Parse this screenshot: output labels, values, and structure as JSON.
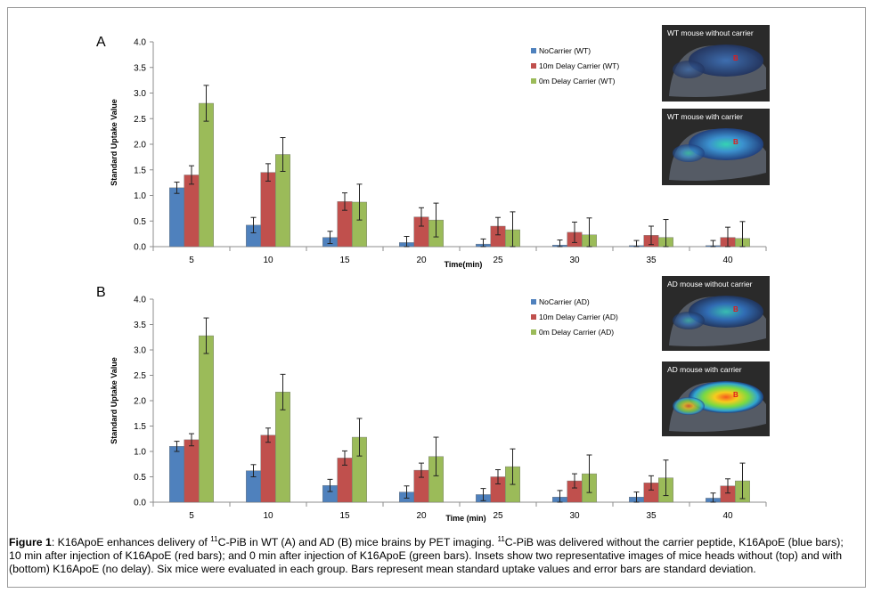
{
  "chart_data": [
    {
      "type": "bar",
      "panel_label": "A",
      "categories": [
        "5",
        "10",
        "15",
        "20",
        "25",
        "30",
        "35",
        "40"
      ],
      "xlabel": "Time(min)",
      "ylabel": "Standard Uptake Value",
      "ylim": [
        0,
        4.0
      ],
      "yticks": [
        "0.0",
        "0.5",
        "1.0",
        "1.5",
        "2.0",
        "2.5",
        "3.0",
        "3.5",
        "4.0"
      ],
      "legend_position": "top-right",
      "series": [
        {
          "name": "NoCarrier (WT)",
          "color": "#4f81bd",
          "values": [
            1.15,
            0.42,
            0.18,
            0.08,
            0.05,
            0.03,
            0.02,
            0.02
          ],
          "errors": [
            0.11,
            0.15,
            0.12,
            0.12,
            0.1,
            0.1,
            0.1,
            0.1
          ]
        },
        {
          "name": "10m Delay Carrier (WT)",
          "color": "#c0504d",
          "values": [
            1.4,
            1.45,
            0.88,
            0.58,
            0.4,
            0.28,
            0.22,
            0.18
          ],
          "errors": [
            0.18,
            0.17,
            0.17,
            0.18,
            0.17,
            0.2,
            0.18,
            0.2
          ]
        },
        {
          "name": "0m Delay Carrier (WT)",
          "color": "#9bbb59",
          "values": [
            2.8,
            1.8,
            0.87,
            0.52,
            0.33,
            0.23,
            0.18,
            0.16
          ],
          "errors": [
            0.35,
            0.33,
            0.35,
            0.33,
            0.35,
            0.33,
            0.35,
            0.33
          ]
        }
      ],
      "insets": [
        {
          "label": "WT mouse without carrier",
          "marker": "B",
          "uptake": "low"
        },
        {
          "label": "WT mouse with carrier",
          "marker": "B",
          "uptake": "medium"
        }
      ]
    },
    {
      "type": "bar",
      "panel_label": "B",
      "categories": [
        "5",
        "10",
        "15",
        "20",
        "25",
        "30",
        "35",
        "40"
      ],
      "xlabel": "Time (min)",
      "ylabel": "Standard Uptake Value",
      "ylim": [
        0,
        4.0
      ],
      "yticks": [
        "0.0",
        "0.5",
        "1.0",
        "1.5",
        "2.0",
        "2.5",
        "3.0",
        "3.5",
        "4.0"
      ],
      "legend_position": "top-right",
      "series": [
        {
          "name": "NoCarrier (AD)",
          "color": "#4f81bd",
          "values": [
            1.1,
            0.62,
            0.33,
            0.2,
            0.15,
            0.1,
            0.1,
            0.08
          ],
          "errors": [
            0.1,
            0.12,
            0.12,
            0.12,
            0.12,
            0.13,
            0.1,
            0.1
          ]
        },
        {
          "name": "10m Delay Carrier (AD)",
          "color": "#c0504d",
          "values": [
            1.23,
            1.32,
            0.87,
            0.63,
            0.5,
            0.42,
            0.38,
            0.32
          ],
          "errors": [
            0.12,
            0.14,
            0.14,
            0.14,
            0.14,
            0.14,
            0.14,
            0.14
          ]
        },
        {
          "name": "0m Delay Carrier (AD)",
          "color": "#9bbb59",
          "values": [
            3.28,
            2.17,
            1.28,
            0.9,
            0.7,
            0.56,
            0.48,
            0.42
          ],
          "errors": [
            0.35,
            0.35,
            0.37,
            0.38,
            0.35,
            0.37,
            0.35,
            0.35
          ]
        }
      ],
      "insets": [
        {
          "label": "AD mouse without carrier",
          "marker": "B",
          "uptake": "low"
        },
        {
          "label": "AD mouse with carrier",
          "marker": "B",
          "uptake": "high"
        }
      ]
    }
  ],
  "caption": {
    "figure_label": "Figure 1",
    "text_part1": ": K16ApoE enhances delivery of ",
    "sup1": "11",
    "text_part2": "C-PiB in WT (A) and AD (B) mice brains by PET imaging. ",
    "sup2": "11",
    "text_part3": "C-PiB was delivered without the carrier peptide, K16ApoE (blue bars); 10 min after injection of K16ApoE (red bars); and 0 min after injection of K16ApoE (green bars). Insets show two representative images of mice heads without (top) and with (bottom) K16ApoE (no delay). Six mice were evaluated in each group. Bars represent mean standard uptake values and error bars are standard deviation."
  }
}
